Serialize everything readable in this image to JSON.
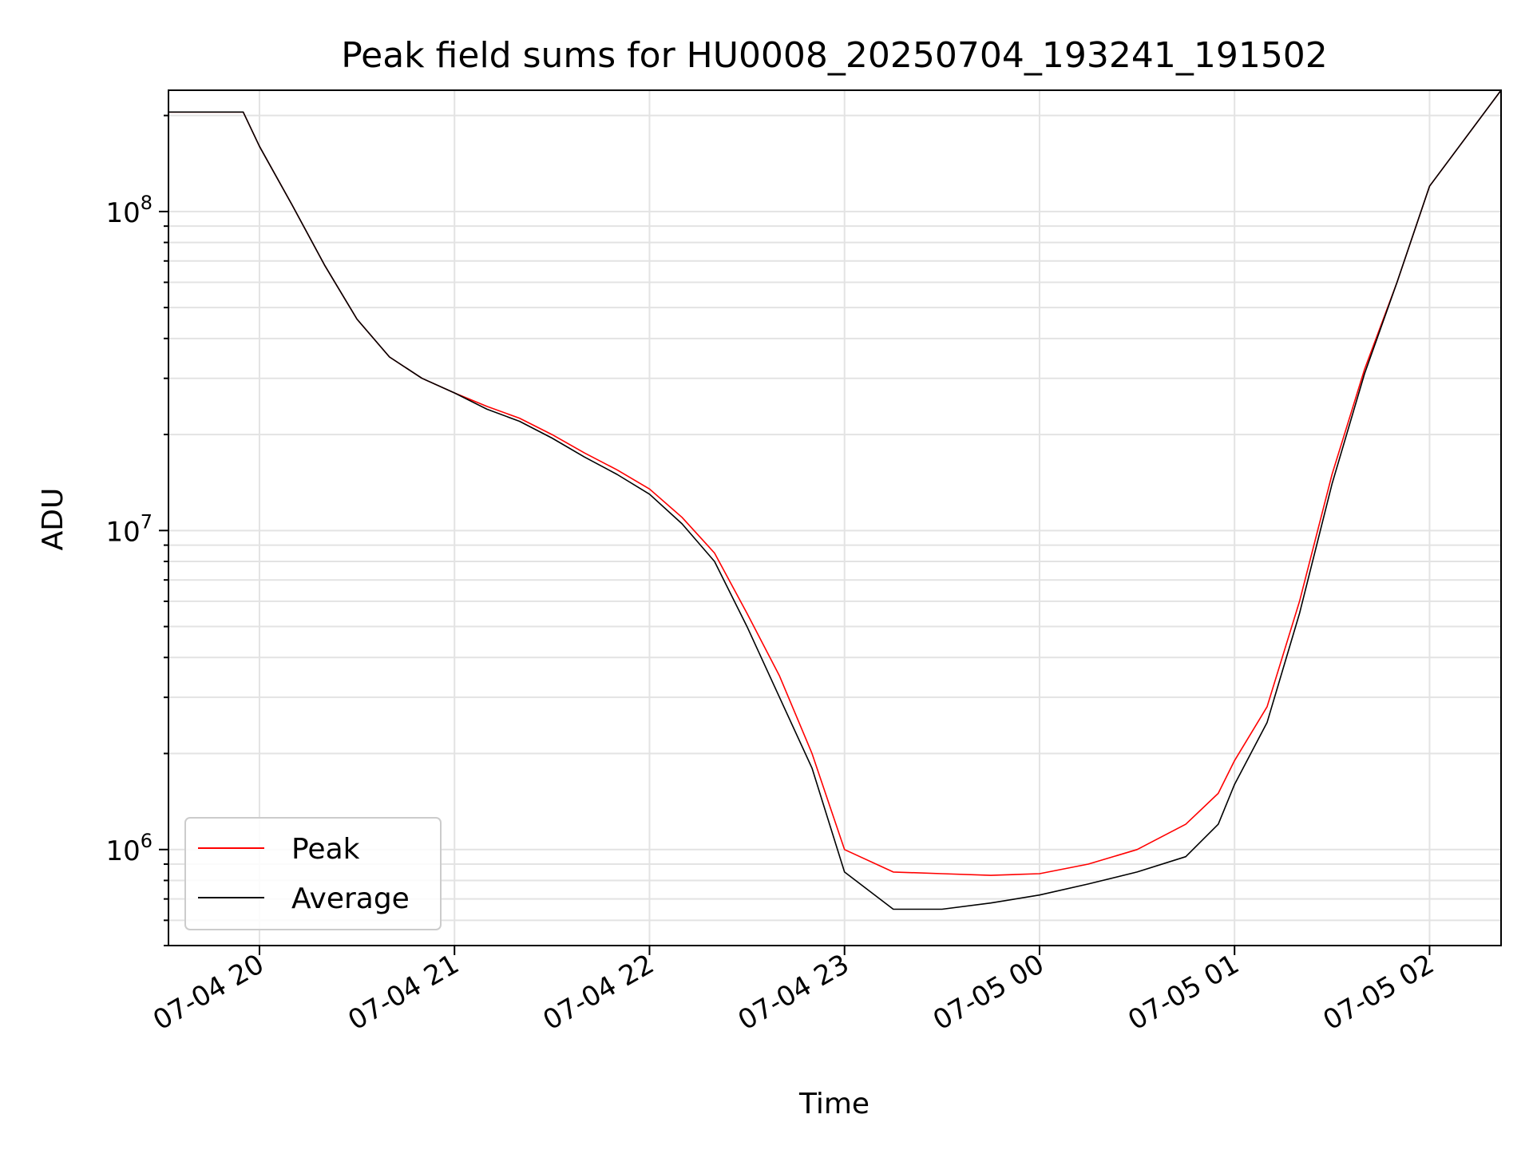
{
  "chart_data": {
    "type": "line",
    "title": "Peak field sums for HU0008_20250704_193241_191502",
    "xlabel": "Time",
    "ylabel": "ADU",
    "yscale": "log",
    "grid": true,
    "legend_position": "lower-left",
    "xlim": [
      "2025-07-04 19:32",
      "2025-07-05 02:22"
    ],
    "ylim": [
      500000,
      240000000
    ],
    "x_tick_labels": [
      "07-04 20",
      "07-04 21",
      "07-04 22",
      "07-04 23",
      "07-05 00",
      "07-05 01",
      "07-05 02"
    ],
    "x_tick_values": [
      "2025-07-04 20:00",
      "2025-07-04 21:00",
      "2025-07-04 22:00",
      "2025-07-04 23:00",
      "2025-07-05 00:00",
      "2025-07-05 01:00",
      "2025-07-05 02:00"
    ],
    "y_ticks": [
      {
        "base": "10",
        "exp": "6",
        "value": 1000000
      },
      {
        "base": "10",
        "exp": "7",
        "value": 10000000
      },
      {
        "base": "10",
        "exp": "8",
        "value": 100000000
      }
    ],
    "x_points": [
      "2025-07-04 19:32",
      "2025-07-04 19:55",
      "2025-07-04 20:00",
      "2025-07-04 20:10",
      "2025-07-04 20:20",
      "2025-07-04 20:30",
      "2025-07-04 20:40",
      "2025-07-04 20:50",
      "2025-07-04 21:00",
      "2025-07-04 21:10",
      "2025-07-04 21:20",
      "2025-07-04 21:30",
      "2025-07-04 21:40",
      "2025-07-04 21:50",
      "2025-07-04 22:00",
      "2025-07-04 22:10",
      "2025-07-04 22:20",
      "2025-07-04 22:30",
      "2025-07-04 22:40",
      "2025-07-04 22:50",
      "2025-07-04 23:00",
      "2025-07-04 23:15",
      "2025-07-04 23:30",
      "2025-07-04 23:45",
      "2025-07-05 00:00",
      "2025-07-05 00:15",
      "2025-07-05 00:30",
      "2025-07-05 00:45",
      "2025-07-05 00:55",
      "2025-07-05 01:00",
      "2025-07-05 01:10",
      "2025-07-05 01:20",
      "2025-07-05 01:30",
      "2025-07-05 01:40",
      "2025-07-05 01:50",
      "2025-07-05 02:00",
      "2025-07-05 02:22"
    ],
    "series": [
      {
        "name": "Peak",
        "color": "#ff0000",
        "values": [
          205000000,
          205000000,
          160000000,
          105000000,
          68000000,
          46000000,
          35000000,
          30000000,
          27000000,
          24500000,
          22500000,
          20000000,
          17500000,
          15500000,
          13500000,
          11000000,
          8500000,
          5500000,
          3500000,
          2000000,
          1000000,
          850000,
          840000,
          830000,
          840000,
          900000,
          1000000,
          1200000,
          1500000,
          1900000,
          2800000,
          6000000,
          15000000,
          32000000,
          60000000,
          120000000,
          240000000
        ]
      },
      {
        "name": "Average",
        "color": "#000000",
        "values": [
          205000000,
          205000000,
          160000000,
          105000000,
          68000000,
          46000000,
          35000000,
          30000000,
          27000000,
          24000000,
          22000000,
          19500000,
          17000000,
          15000000,
          13000000,
          10500000,
          8000000,
          5000000,
          3000000,
          1800000,
          850000,
          650000,
          650000,
          680000,
          720000,
          780000,
          850000,
          950000,
          1200000,
          1600000,
          2500000,
          5500000,
          14000000,
          31000000,
          60000000,
          120000000,
          240000000
        ]
      }
    ]
  }
}
